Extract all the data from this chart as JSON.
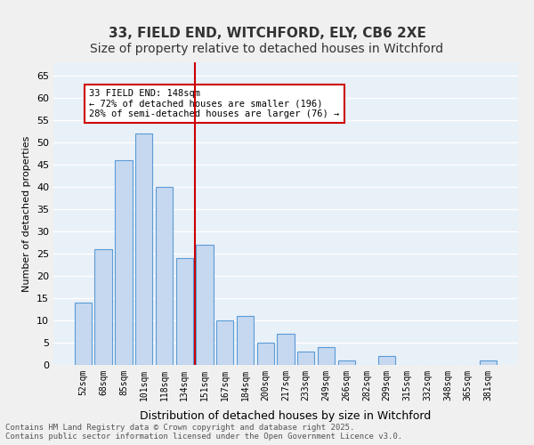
{
  "title1": "33, FIELD END, WITCHFORD, ELY, CB6 2XE",
  "title2": "Size of property relative to detached houses in Witchford",
  "xlabel": "Distribution of detached houses by size in Witchford",
  "ylabel": "Number of detached properties",
  "categories": [
    "52sqm",
    "68sqm",
    "85sqm",
    "101sqm",
    "118sqm",
    "134sqm",
    "151sqm",
    "167sqm",
    "184sqm",
    "200sqm",
    "217sqm",
    "233sqm",
    "249sqm",
    "266sqm",
    "282sqm",
    "299sqm",
    "315sqm",
    "332sqm",
    "348sqm",
    "365sqm",
    "381sqm"
  ],
  "values": [
    14,
    26,
    46,
    52,
    40,
    24,
    27,
    10,
    11,
    5,
    7,
    3,
    4,
    1,
    0,
    2,
    0,
    0,
    0,
    0,
    1
  ],
  "bar_color": "#c5d8f0",
  "bar_edge_color": "#5b9bd5",
  "vline_x": 6,
  "vline_color": "#cc0000",
  "annotation_text": "33 FIELD END: 148sqm\n← 72% of detached houses are smaller (196)\n28% of semi-detached houses are larger (76) →",
  "annotation_box_color": "#ffffff",
  "annotation_box_edge": "#cc0000",
  "ylim": [
    0,
    68
  ],
  "yticks": [
    0,
    5,
    10,
    15,
    20,
    25,
    30,
    35,
    40,
    45,
    50,
    55,
    60,
    65
  ],
  "background_color": "#e8f0f8",
  "footer_text": "Contains HM Land Registry data © Crown copyright and database right 2025.\nContains public sector information licensed under the Open Government Licence v3.0.",
  "grid_color": "#ffffff",
  "title_fontsize": 11,
  "subtitle_fontsize": 10
}
